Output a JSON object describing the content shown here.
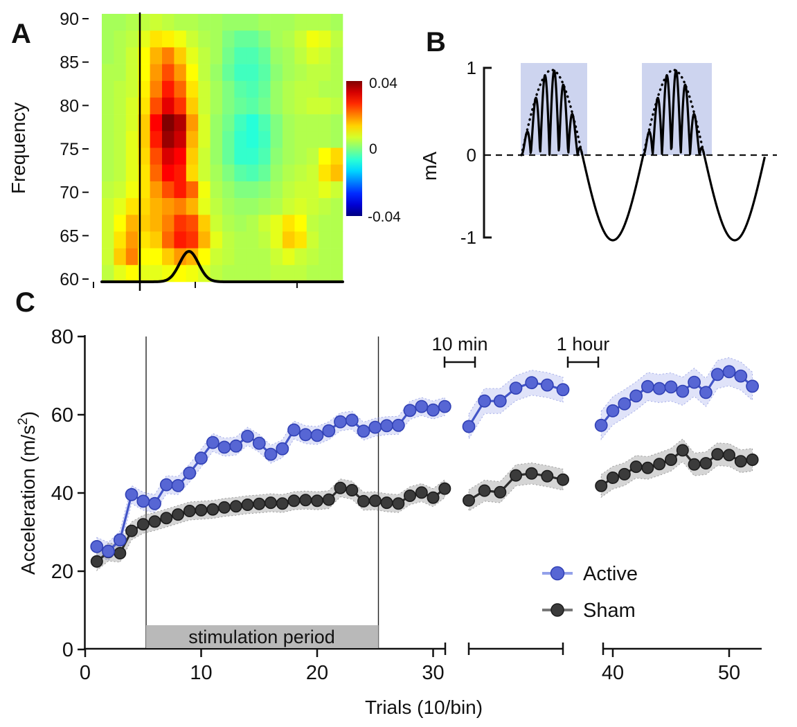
{
  "labels": {
    "panel_a": "A",
    "panel_b": "B",
    "panel_c": "C",
    "a_ylabel": "Frequency",
    "b_ylabel": "mA",
    "c_ylabel_pre": "Acceleration (m/s",
    "c_ylabel_sup": "2",
    "c_ylabel_post": ")",
    "c_xlabel": "Trials (10/bin)",
    "stim_label": "stimulation period",
    "break1_label": "10 min",
    "break2_label": "1 hour",
    "legend_active": "Active",
    "legend_sham": "Sham",
    "colorbar_max": "0.04",
    "colorbar_mid": "0",
    "colorbar_min": "-0.04"
  },
  "colors": {
    "active_line": "#4355c8",
    "active_dot": "#5766d4",
    "active_band": "rgba(124,138,230,0.24)",
    "sham_line": "#2d2d2d",
    "sham_dot": "#3b3b3b",
    "sham_band": "rgba(125,125,125,0.32)",
    "stim_bar": "#b9b9b9",
    "burst_shade": "#cdd4ef"
  },
  "chart_data": [
    {
      "id": "panel-A",
      "type": "heatmap",
      "ylabel": "Frequency",
      "yticks": [
        90,
        85,
        80,
        75,
        70,
        65,
        60
      ],
      "y_range": [
        60,
        90
      ],
      "colorbar_ticks": [
        "0.04",
        "0",
        "-0.04"
      ],
      "colorbar_range": [
        -0.04,
        0.04
      ],
      "colormap": "jet",
      "value_scale": 0.001,
      "grid": [
        [
          3,
          3,
          4,
          5,
          6,
          5,
          4,
          4,
          3,
          3,
          2,
          2,
          2,
          3,
          3,
          3,
          4,
          4,
          4,
          3
        ],
        [
          3,
          4,
          5,
          8,
          12,
          11,
          9,
          6,
          4,
          3,
          0,
          -2,
          -2,
          0,
          3,
          4,
          6,
          9,
          8,
          5
        ],
        [
          3,
          4,
          6,
          10,
          16,
          20,
          14,
          8,
          5,
          3,
          -1,
          -4,
          -4,
          -2,
          2,
          3,
          5,
          7,
          6,
          4
        ],
        [
          4,
          4,
          6,
          10,
          18,
          24,
          18,
          10,
          5,
          2,
          -2,
          -5,
          -5,
          -3,
          1,
          3,
          4,
          5,
          5,
          4
        ],
        [
          4,
          5,
          6,
          11,
          20,
          28,
          22,
          12,
          6,
          3,
          0,
          -3,
          -4,
          -2,
          2,
          4,
          5,
          5,
          4,
          4
        ],
        [
          4,
          5,
          7,
          12,
          24,
          32,
          26,
          14,
          6,
          3,
          0,
          -2,
          -3,
          -1,
          2,
          4,
          5,
          6,
          6,
          5
        ],
        [
          4,
          5,
          7,
          14,
          30,
          40,
          36,
          18,
          7,
          2,
          -1,
          -5,
          -7,
          -4,
          0,
          3,
          4,
          4,
          4,
          3
        ],
        [
          4,
          5,
          8,
          14,
          28,
          38,
          34,
          16,
          7,
          2,
          -2,
          -6,
          -7,
          -5,
          0,
          3,
          4,
          4,
          4,
          3
        ],
        [
          4,
          5,
          8,
          13,
          24,
          33,
          30,
          14,
          6,
          2,
          -2,
          -6,
          -6,
          -4,
          1,
          3,
          4,
          5,
          10,
          13
        ],
        [
          4,
          5,
          8,
          12,
          22,
          30,
          28,
          13,
          6,
          3,
          0,
          -3,
          -4,
          -2,
          2,
          4,
          5,
          6,
          12,
          15
        ],
        [
          5,
          6,
          9,
          12,
          18,
          24,
          28,
          22,
          9,
          4,
          2,
          0,
          0,
          1,
          3,
          5,
          6,
          6,
          8,
          6
        ],
        [
          6,
          8,
          12,
          13,
          16,
          18,
          20,
          16,
          8,
          5,
          3,
          2,
          2,
          3,
          4,
          6,
          7,
          6,
          5,
          4
        ],
        [
          6,
          10,
          16,
          14,
          16,
          20,
          26,
          24,
          14,
          6,
          4,
          3,
          4,
          6,
          8,
          12,
          10,
          5,
          4,
          4
        ],
        [
          6,
          12,
          18,
          12,
          14,
          22,
          28,
          26,
          16,
          8,
          5,
          4,
          4,
          5,
          8,
          14,
          12,
          6,
          4,
          4
        ],
        [
          6,
          14,
          20,
          10,
          10,
          14,
          18,
          16,
          10,
          6,
          5,
          4,
          4,
          4,
          6,
          8,
          6,
          5,
          4,
          4
        ],
        [
          5,
          8,
          10,
          8,
          8,
          9,
          10,
          9,
          7,
          5,
          4,
          4,
          4,
          4,
          5,
          5,
          5,
          4,
          4,
          4
        ]
      ],
      "event_marker_frac": 0.158,
      "density_curve": {
        "center_frac": 0.362,
        "sigma_frac": 0.039,
        "height_frac": 0.114
      }
    },
    {
      "id": "panel-B",
      "type": "line",
      "ylabel": "mA",
      "yticks": [
        "1",
        "0",
        "-1"
      ],
      "ylim": [
        -1,
        1
      ],
      "amplitude_mA": 1,
      "half_cycles": [
        "burst",
        "negative-sine",
        "burst",
        "negative-sine"
      ],
      "carrier_arcs_per_half_cycle": 6.5,
      "shaded_half_cycles": [
        0,
        2
      ],
      "zero_line": "dashed"
    },
    {
      "id": "panel-C",
      "type": "line",
      "xlabel": "Trials (10/bin)",
      "ylabel": "Acceleration (m/s2)",
      "ylim": [
        0,
        80
      ],
      "yticks": [
        80,
        60,
        40,
        20,
        0
      ],
      "xticks_segment1": [
        0,
        10,
        20,
        30
      ],
      "xticks_segment3": [
        40,
        50
      ],
      "stimulation_period_trials": [
        5,
        25
      ],
      "axis_breaks": [
        "10 min",
        "1 hour"
      ],
      "segments": [
        {
          "trials_start": 1,
          "trials_end": 31
        },
        {
          "trials_start": 32,
          "trials_end": 38
        },
        {
          "trials_start": 39,
          "trials_end": 52
        }
      ],
      "series": [
        {
          "name": "Active",
          "err_by_segment": [
            2.3,
            3.2,
            3.6
          ],
          "values_segment1": [
            26.3,
            25.1,
            28,
            39.6,
            37.9,
            37.3,
            42.1,
            41.9,
            45.1,
            48.9,
            52.9,
            51.7,
            52,
            54.5,
            52.7,
            49.9,
            51.3,
            56.1,
            54.9,
            54.7,
            55.9,
            58.2,
            58.6,
            55.8,
            56.8,
            57.2,
            57.3,
            61.1,
            62.1,
            61.2,
            62.1
          ],
          "values_segment2": [
            57,
            63.5,
            63.5,
            66.8,
            68.2,
            67.6,
            66.4
          ],
          "values_segment3": [
            57.3,
            61,
            62.8,
            64.8,
            67.2,
            66.7,
            67.1,
            66,
            68.3,
            65.7,
            70.3,
            71,
            69.9,
            67.3
          ]
        },
        {
          "name": "Sham",
          "err_by_segment": [
            2.3,
            2.7,
            2.9
          ],
          "values_segment1": [
            22.5,
            24.9,
            24.6,
            30.3,
            32,
            32.7,
            33.6,
            34.5,
            35.4,
            35.6,
            35.8,
            36.3,
            36.6,
            37,
            37.2,
            37.5,
            37.3,
            38,
            38.2,
            38,
            38.3,
            41.3,
            40.7,
            37.9,
            38,
            37.5,
            37.3,
            39.3,
            40.1,
            38.8,
            41.1
          ],
          "values_segment2": [
            38.1,
            40.6,
            40.2,
            44.5,
            45,
            44.3,
            43.4
          ],
          "values_segment3": [
            41.8,
            43.9,
            44.8,
            46.7,
            46.4,
            47.4,
            48.5,
            50.9,
            47.3,
            47.6,
            49.9,
            49.7,
            48.1,
            48.5
          ]
        }
      ]
    }
  ]
}
